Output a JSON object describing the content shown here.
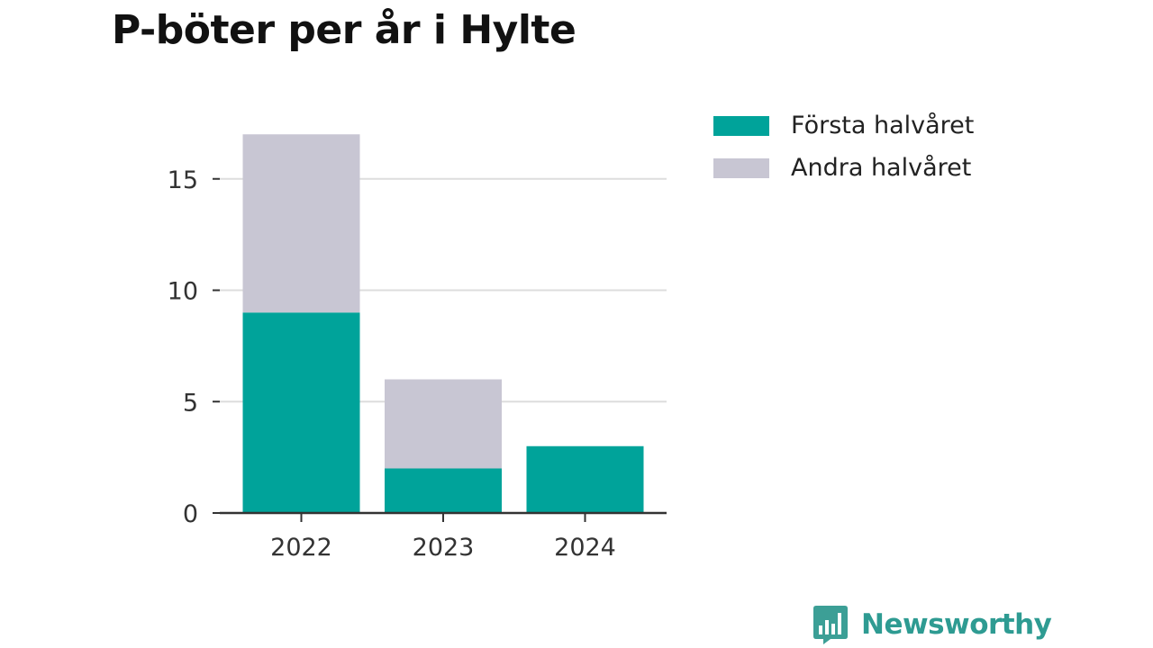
{
  "title": "P-böter per år i Hylte",
  "brand": {
    "name": "Newsworthy",
    "logo_icon": "bar-chart-speech-bubble-icon"
  },
  "colors": {
    "first_half": "#00a39a",
    "second_half": "#c8c6d3",
    "grid": "#dddddd",
    "axis": "#333333",
    "brand": "#2e9b92"
  },
  "chart_data": {
    "type": "bar",
    "stacked": true,
    "title": "P-böter per år i Hylte",
    "xlabel": "",
    "ylabel": "",
    "categories": [
      "2022",
      "2023",
      "2024"
    ],
    "series": [
      {
        "name": "Första halvåret",
        "values": [
          9,
          2,
          3
        ],
        "color": "#00a39a"
      },
      {
        "name": "Andra halvåret",
        "values": [
          8,
          4,
          0
        ],
        "color": "#c8c6d3"
      }
    ],
    "ylim": [
      0,
      17
    ],
    "yticks": [
      0,
      5,
      10,
      15
    ],
    "grid": true,
    "legend": "top-right"
  }
}
